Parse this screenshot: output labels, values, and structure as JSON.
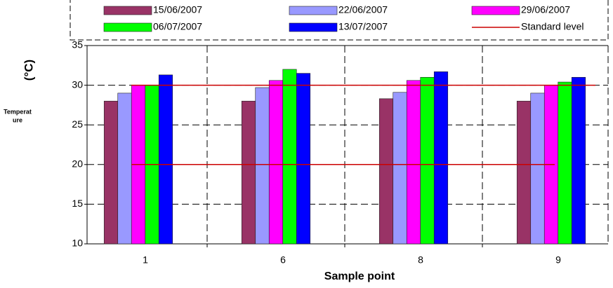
{
  "chart_data": {
    "type": "bar",
    "y_label_lines": [
      "Temperat",
      "ure"
    ],
    "y_unit": "(°C)",
    "x_label": "Sample point",
    "categories": [
      "1",
      "6",
      "8",
      "9"
    ],
    "series": [
      {
        "name": "15/06/2007",
        "color": "#993366",
        "values": [
          28,
          28,
          28.3,
          28
        ]
      },
      {
        "name": "22/06/2007",
        "color": "#9999ff",
        "values": [
          29,
          29.7,
          29.1,
          29
        ]
      },
      {
        "name": "29/06/2007",
        "color": "#ff00ff",
        "values": [
          30,
          30.6,
          30.6,
          30
        ]
      },
      {
        "name": "06/07/2007",
        "color": "#00ff00",
        "values": [
          30,
          32,
          31,
          30.4
        ]
      },
      {
        "name": "13/07/2007",
        "color": "#0000ff",
        "values": [
          31.3,
          31.5,
          31.7,
          31
        ]
      }
    ],
    "reference_lines": {
      "name": "Standard level",
      "color": "#cc0000",
      "values": [
        30,
        20
      ]
    },
    "ylim": [
      10,
      35
    ],
    "yticks": [
      10,
      15,
      20,
      25,
      30,
      35
    ],
    "grid": true
  }
}
